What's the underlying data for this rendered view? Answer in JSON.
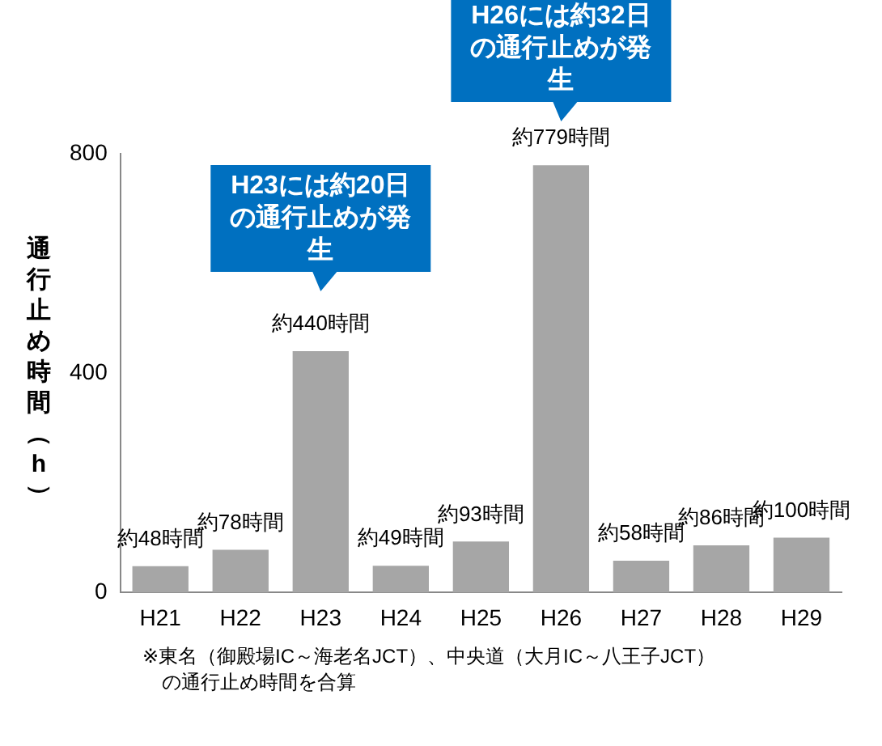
{
  "chart_data": {
    "type": "bar",
    "ylabel": "通行止め時間（h）",
    "categories": [
      "H21",
      "H22",
      "H23",
      "H24",
      "H25",
      "H26",
      "H27",
      "H28",
      "H29"
    ],
    "values": [
      48,
      78,
      440,
      49,
      93,
      779,
      58,
      86,
      100
    ],
    "color": "#a6a6a6",
    "value_labels": [
      "約48時間",
      "約78時間",
      "約440時間",
      "約49時間",
      "約93時間",
      "約779時間",
      "約58時間",
      "約86時間",
      "約100時間"
    ],
    "ylim": [
      0,
      800
    ],
    "yticks": [
      0,
      400,
      800
    ],
    "grid": false,
    "legend": false,
    "annotations": [
      "H23には約20日の通行止めが発生",
      "H26には約32日の通行止めが発生",
      "※東名（御殿場IC～海老名JCT）、中央道（大月IC～八王子JCT）の通行止め時間を合算"
    ]
  }
}
